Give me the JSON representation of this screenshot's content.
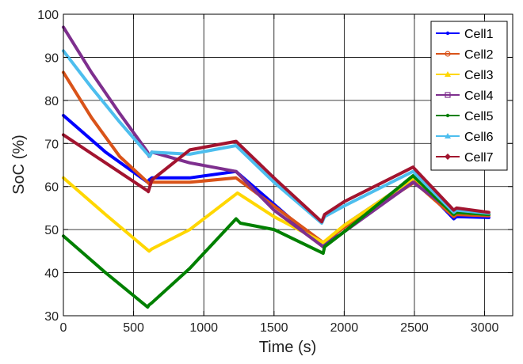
{
  "chart_data": {
    "type": "line",
    "title": "",
    "xlabel": "Time (s)",
    "ylabel": "SoC (%)",
    "xlim": [
      0,
      3200
    ],
    "ylim": [
      30,
      100
    ],
    "xticks": [
      0,
      500,
      1000,
      1500,
      2000,
      2500,
      3000
    ],
    "yticks": [
      30,
      40,
      50,
      60,
      70,
      80,
      90,
      100
    ],
    "xtick_labels": [
      "0",
      "500",
      "1000",
      "1500",
      "2000",
      "2500",
      "3000"
    ],
    "ytick_labels": [
      "30",
      "40",
      "50",
      "60",
      "70",
      "80",
      "90",
      "100"
    ],
    "grid": true,
    "legend_position": "top-right",
    "series": [
      {
        "name": "Cell1",
        "color": "#0000ff",
        "marker": "dot",
        "x": [
          0,
          300,
          600,
          610,
          630,
          900,
          1230,
          1850,
          2000,
          2500,
          2780,
          2800,
          3030
        ],
        "y": [
          76.5,
          68,
          61,
          61.5,
          62,
          62,
          63.5,
          46,
          51,
          62,
          52.5,
          53,
          52.8
        ]
      },
      {
        "name": "Cell2",
        "color": "#d95319",
        "marker": "circle",
        "x": [
          0,
          200,
          400,
          600,
          615,
          630,
          900,
          1230,
          1850,
          2000,
          2500,
          2780,
          2800,
          3030
        ],
        "y": [
          86.5,
          76,
          67,
          61,
          60.5,
          61,
          61,
          62,
          47,
          50.5,
          61,
          53,
          53.5,
          53.2
        ]
      },
      {
        "name": "Cell3",
        "color": "#ffd700",
        "marker": "triangle",
        "x": [
          0,
          300,
          610,
          630,
          900,
          1240,
          1500,
          1850,
          2000,
          2500,
          2780,
          2800,
          3030
        ],
        "y": [
          62,
          53.5,
          45,
          45.5,
          50,
          58.5,
          53,
          47,
          51,
          62,
          53.5,
          54,
          53.5
        ]
      },
      {
        "name": "Cell4",
        "color": "#7e2f8e",
        "marker": "square",
        "x": [
          0,
          200,
          400,
          600,
          610,
          630,
          900,
          1230,
          1500,
          1850,
          2000,
          2490,
          2780,
          2800,
          3030
        ],
        "y": [
          97,
          86.5,
          77,
          68,
          67,
          68,
          65.5,
          63.5,
          54.5,
          46,
          49.5,
          61,
          54,
          54.5,
          53.5
        ]
      },
      {
        "name": "Cell5",
        "color": "#008000",
        "marker": "dot",
        "x": [
          0,
          300,
          600,
          610,
          630,
          900,
          1230,
          1260,
          1500,
          1850,
          1860,
          2000,
          2490,
          2780,
          2800,
          3030
        ],
        "y": [
          48.5,
          40,
          32,
          32.5,
          33,
          41,
          52.5,
          51.5,
          50,
          44.5,
          46,
          49.5,
          62.5,
          53.5,
          54,
          53.5
        ]
      },
      {
        "name": "Cell6",
        "color": "#4dbeee",
        "marker": "triangle",
        "x": [
          0,
          200,
          400,
          600,
          615,
          630,
          900,
          1230,
          1500,
          1840,
          1860,
          2000,
          2490,
          2780,
          2800,
          3030
        ],
        "y": [
          91.5,
          83,
          75,
          67.5,
          67,
          68,
          67.5,
          69.5,
          61,
          51.5,
          53,
          55.5,
          63.5,
          54,
          54.5,
          53.8
        ]
      },
      {
        "name": "Cell7",
        "color": "#a2142f",
        "marker": "diamond",
        "x": [
          0,
          300,
          600,
          605,
          630,
          900,
          1230,
          1500,
          1840,
          1860,
          2000,
          2490,
          2780,
          2800,
          3030
        ],
        "y": [
          72,
          65.5,
          59,
          58.8,
          61.5,
          68.5,
          70.5,
          62,
          51.8,
          53.5,
          56.5,
          64.5,
          54.5,
          55,
          54
        ]
      }
    ]
  }
}
